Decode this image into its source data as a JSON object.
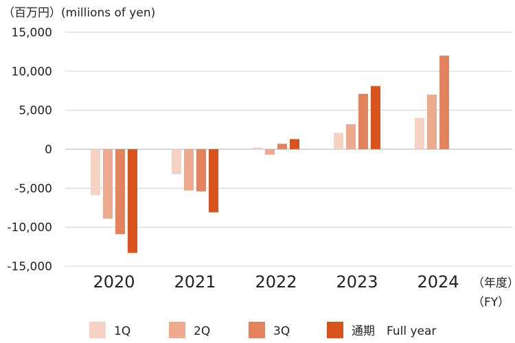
{
  "unit_label": "（百万円）(millions of yen)",
  "fy_label_line1": "（年度）",
  "fy_label_line2": "（FY）",
  "chart_data": {
    "type": "bar",
    "categories": [
      "2020",
      "2021",
      "2022",
      "2023",
      "2024"
    ],
    "ylim": [
      -15000,
      15000
    ],
    "yticks": [
      15000,
      10000,
      5000,
      0,
      -5000,
      -10000,
      -15000
    ],
    "ytick_labels": [
      "15,000",
      "10,000",
      "5,000",
      "0",
      "-5,000",
      "-10,000",
      "-15,000"
    ],
    "grid": true,
    "legend_position": "bottom",
    "series": [
      {
        "name": "1Q",
        "color": "#f5d3c4",
        "values": [
          -5900,
          -3200,
          200,
          2100,
          4000
        ]
      },
      {
        "name": "2Q",
        "color": "#eeaa8f",
        "values": [
          -8900,
          -5300,
          -700,
          3200,
          7000
        ]
      },
      {
        "name": "3Q",
        "color": "#e3835d",
        "values": [
          -10900,
          -5400,
          700,
          7100,
          12000
        ]
      },
      {
        "name": "通期　Full year",
        "color": "#d9531e",
        "values": [
          -13300,
          -8100,
          1300,
          8100,
          null
        ]
      }
    ]
  }
}
